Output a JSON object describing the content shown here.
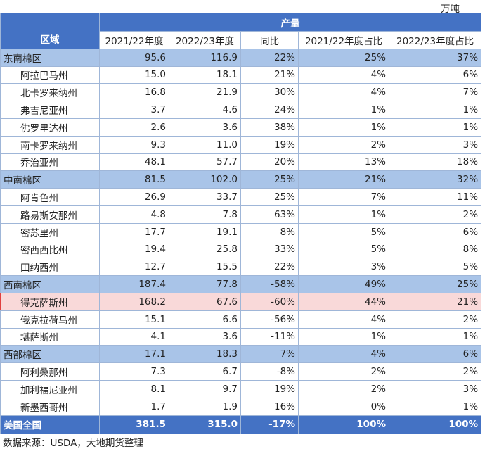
{
  "unit": "万吨",
  "table": {
    "header": {
      "area": "区域",
      "group": "产量",
      "columns": [
        "2021/22年度",
        "2022/23年度",
        "同比",
        "2021/22年度占比",
        "2022/23年度占比"
      ]
    },
    "groups": [
      {
        "region": [
          "东南棉区",
          "95.6",
          "116.9",
          "22%",
          "25%",
          "37%"
        ],
        "members": [
          [
            "阿拉巴马州",
            "15.0",
            "18.1",
            "21%",
            "4%",
            "6%"
          ],
          [
            "北卡罗来纳州",
            "16.8",
            "21.9",
            "30%",
            "4%",
            "7%"
          ],
          [
            "弗吉尼亚州",
            "3.7",
            "4.6",
            "24%",
            "1%",
            "1%"
          ],
          [
            "佛罗里达州",
            "2.6",
            "3.6",
            "38%",
            "1%",
            "1%"
          ],
          [
            "南卡罗来纳州",
            "9.3",
            "11.0",
            "19%",
            "2%",
            "3%"
          ],
          [
            "乔治亚州",
            "48.1",
            "57.7",
            "20%",
            "13%",
            "18%"
          ]
        ]
      },
      {
        "region": [
          "中南棉区",
          "81.5",
          "102.0",
          "25%",
          "21%",
          "32%"
        ],
        "members": [
          [
            "阿肯色州",
            "26.9",
            "33.7",
            "25%",
            "7%",
            "11%"
          ],
          [
            "路易斯安那州",
            "4.8",
            "7.8",
            "63%",
            "1%",
            "2%"
          ],
          [
            "密苏里州",
            "17.7",
            "19.1",
            "8%",
            "5%",
            "6%"
          ],
          [
            "密西西比州",
            "19.4",
            "25.8",
            "33%",
            "5%",
            "8%"
          ],
          [
            "田纳西州",
            "12.7",
            "15.5",
            "22%",
            "3%",
            "5%"
          ]
        ]
      },
      {
        "region": [
          "西南棉区",
          "187.4",
          "77.8",
          "-58%",
          "49%",
          "25%"
        ],
        "members": [
          [
            "得克萨斯州",
            "168.2",
            "67.6",
            "-60%",
            "44%",
            "21%"
          ],
          [
            "俄克拉荷马州",
            "15.1",
            "6.6",
            "-56%",
            "4%",
            "2%"
          ],
          [
            "堪萨斯州",
            "4.1",
            "3.6",
            "-11%",
            "1%",
            "1%"
          ]
        ]
      },
      {
        "region": [
          "西部棉区",
          "17.1",
          "18.3",
          "7%",
          "4%",
          "6%"
        ],
        "members": [
          [
            "阿利桑那州",
            "7.3",
            "6.7",
            "-8%",
            "2%",
            "2%"
          ],
          [
            "加利福尼亚州",
            "8.1",
            "9.7",
            "19%",
            "2%",
            "3%"
          ],
          [
            "新墨西哥州",
            "1.7",
            "1.9",
            "16%",
            "0%",
            "1%"
          ]
        ]
      }
    ],
    "total": [
      "美国全国",
      "381.5",
      "315.0",
      "-17%",
      "100%",
      "100%"
    ]
  },
  "source": "数据来源：USDA，大地期货整理"
}
